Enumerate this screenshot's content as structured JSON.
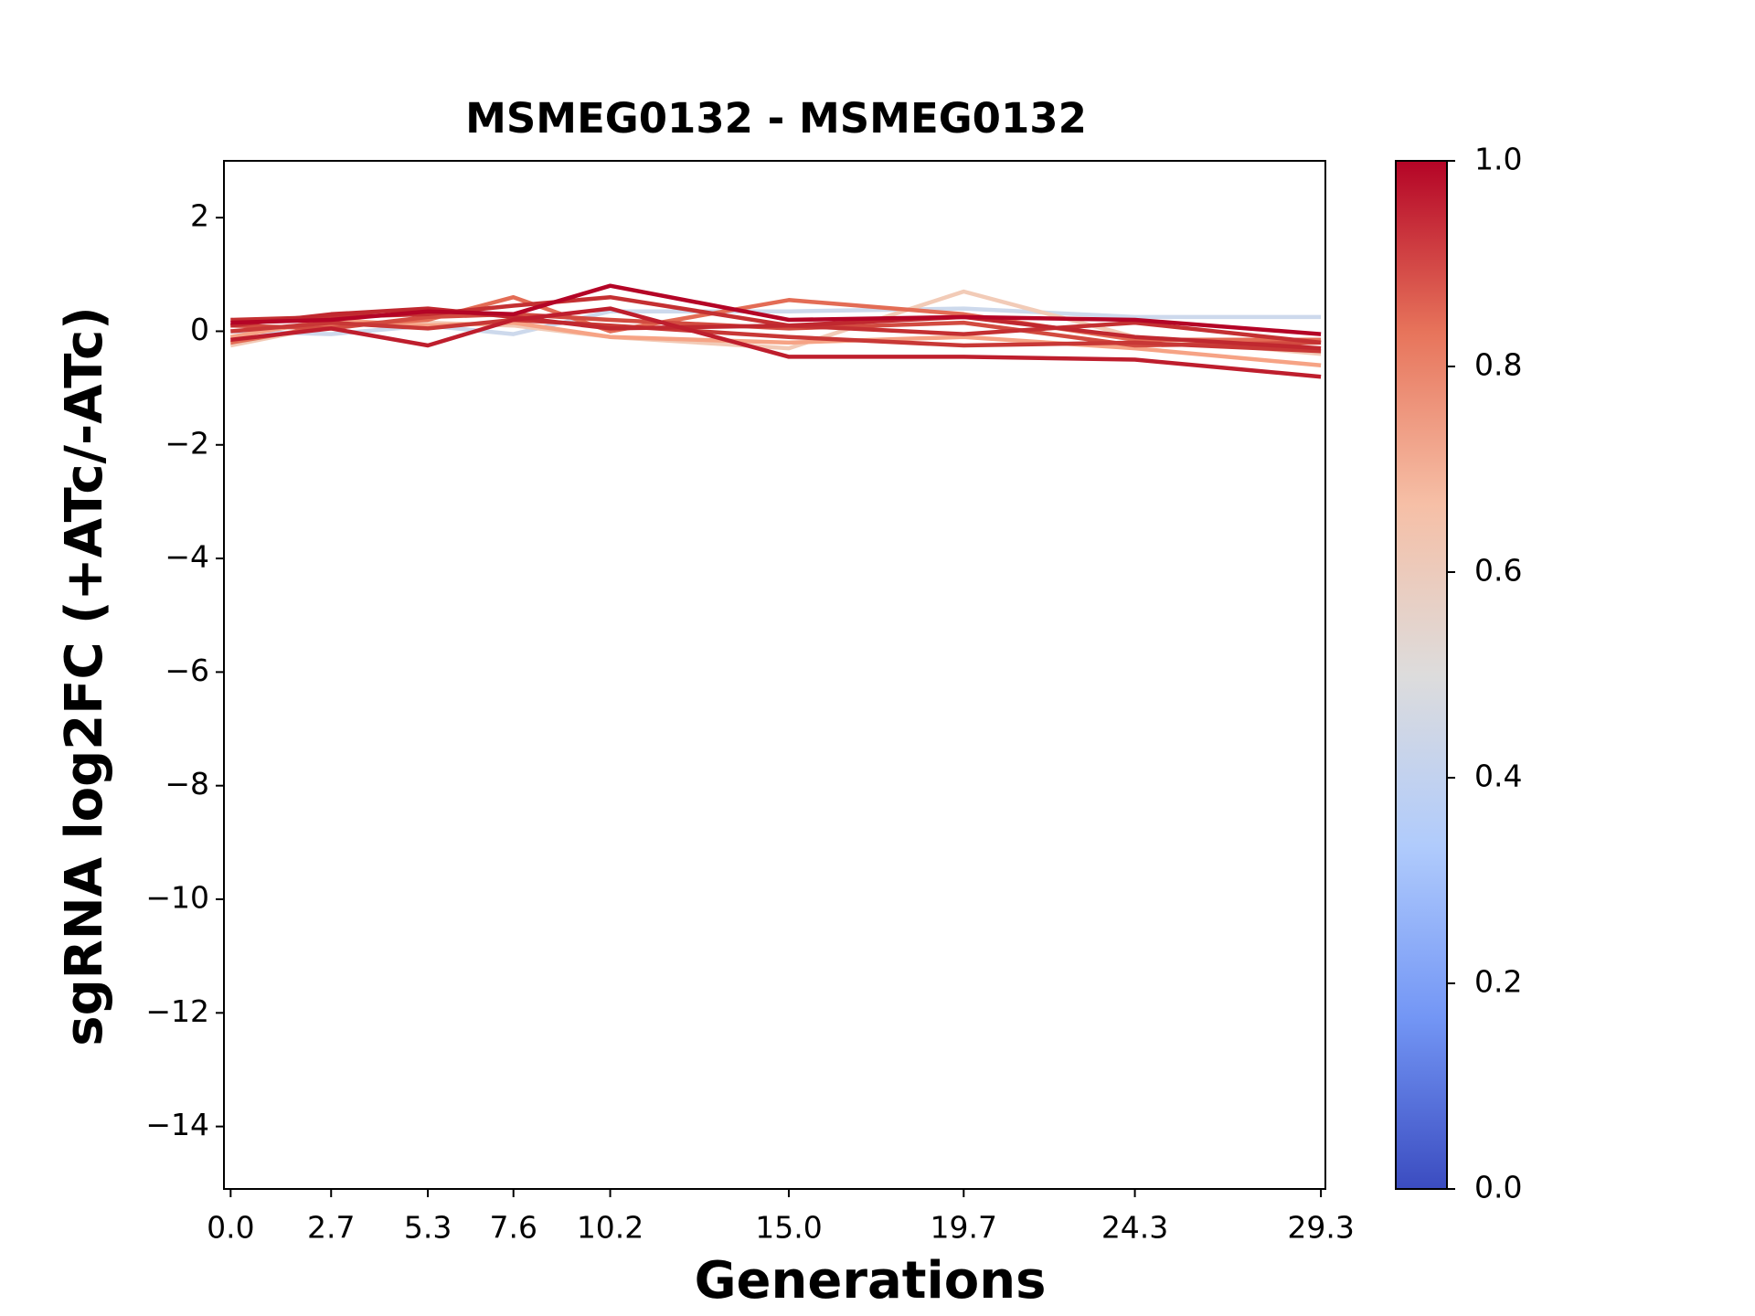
{
  "chart_data": {
    "type": "line",
    "title": "MSMEG0132 - MSMEG0132",
    "xlabel": "Generations",
    "ylabel": "sgRNA log2FC (+ATc/-ATc)",
    "x": [
      0,
      2.7,
      5.3,
      7.6,
      10.2,
      15,
      19.7,
      24.3,
      29.3
    ],
    "xlim": [
      -0.18,
      29.42
    ],
    "xticks": [
      {
        "value": 0,
        "label": "0.0"
      },
      2.7,
      5.3,
      7.6,
      10.2,
      {
        "value": 15,
        "label": "15.0"
      },
      19.7,
      24.3,
      29.3
    ],
    "ylim": [
      -15.1,
      3
    ],
    "yticks": [
      2,
      0,
      {
        "value": -2,
        "label": "−2"
      },
      {
        "value": -4,
        "label": "−4"
      },
      {
        "value": -6,
        "label": "−6"
      },
      {
        "value": -8,
        "label": "−8"
      },
      {
        "value": -10,
        "label": "−10"
      },
      {
        "value": -12,
        "label": "−12"
      },
      {
        "value": -14,
        "label": "−14"
      }
    ],
    "series": [
      {
        "color": "#cdd9ec",
        "values": [
          0,
          -0.05,
          0.1,
          -0.05,
          0.35,
          0.35,
          0.4,
          0.25,
          0.25
        ]
      },
      {
        "color": "#f2cbb7",
        "values": [
          -0.25,
          0.1,
          0.15,
          0.1,
          -0.1,
          -0.3,
          0.7,
          -0.1,
          -0.4
        ]
      },
      {
        "color": "#f6a385",
        "values": [
          -0.1,
          0.2,
          0.1,
          0.15,
          -0.1,
          -0.2,
          -0.1,
          -0.3,
          -0.6
        ]
      },
      {
        "color": "#e36c55",
        "values": [
          -0.2,
          0.1,
          0.2,
          0.6,
          0,
          0.55,
          0.3,
          -0.15,
          -0.15
        ]
      },
      {
        "color": "#d24b40",
        "values": [
          0.1,
          0.05,
          0.25,
          0.3,
          0.2,
          0.05,
          0.15,
          -0.25,
          -0.2
        ]
      },
      {
        "color": "#c83836",
        "values": [
          0,
          0.15,
          0.05,
          0.2,
          0.1,
          -0.1,
          -0.25,
          -0.2,
          -0.35
        ]
      },
      {
        "color": "#c43032",
        "values": [
          0.2,
          0.25,
          0.3,
          0.45,
          0.6,
          0.1,
          -0.05,
          0.15,
          -0.2
        ]
      },
      {
        "color": "#c0282f",
        "values": [
          0.1,
          0.3,
          0.4,
          0.25,
          0.05,
          0.1,
          0.25,
          -0.1,
          -0.3
        ]
      },
      {
        "color": "#be1e2d",
        "values": [
          -0.15,
          0.05,
          -0.25,
          0.2,
          0.4,
          -0.45,
          -0.45,
          -0.5,
          -0.8
        ]
      },
      {
        "color": "#b40426",
        "values": [
          0.15,
          0.2,
          0.35,
          0.3,
          0.8,
          0.2,
          0.25,
          0.2,
          -0.05
        ]
      }
    ],
    "colorbar": {
      "lim": [
        0,
        1
      ],
      "ticks": [
        {
          "value": 0,
          "label": "0.0"
        },
        0.2,
        0.4,
        0.6,
        0.8,
        {
          "value": 1,
          "label": "1.0"
        }
      ],
      "colors": [
        "#3b4cc0",
        "#7396f5",
        "#b0cbfc",
        "#dddcdc",
        "#f6bfa6",
        "#e7745b",
        "#b40426"
      ]
    }
  }
}
